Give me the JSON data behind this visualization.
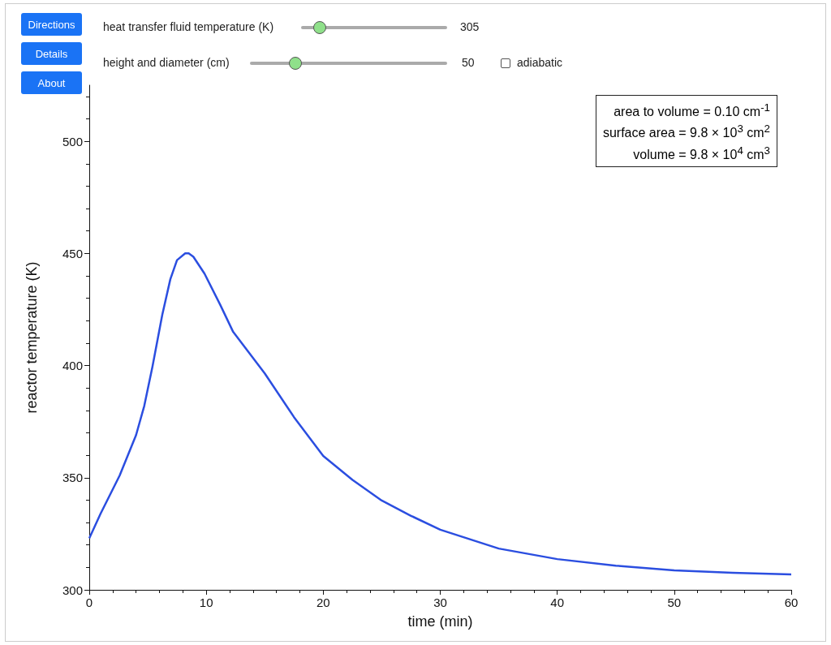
{
  "chart_data": {
    "type": "line",
    "xlabel": "time (min)",
    "ylabel": "reactor temperature (K)",
    "x": [
      0,
      0.97,
      2.6,
      4.0,
      4.7,
      5.4,
      6.24,
      6.93,
      7.5,
      8.2,
      8.5,
      8.9,
      9.85,
      11.2,
      12.3,
      15,
      17.5,
      20,
      22.5,
      25,
      27.5,
      30,
      35,
      40,
      45,
      50,
      55,
      60
    ],
    "series": [
      {
        "color": "#2b4ee0",
        "values": [
          323,
          334,
          351,
          369,
          382,
          399.5,
          422.6,
          438.5,
          447,
          450,
          450,
          448.5,
          441,
          427,
          415,
          396.5,
          377,
          359.7,
          349,
          339.8,
          333,
          326.8,
          318.4,
          313.7,
          310.8,
          308.7,
          307.6,
          306.9
        ]
      }
    ],
    "xlim": [
      0,
      60
    ],
    "xticks": [
      0,
      10,
      20,
      30,
      40,
      50,
      60
    ],
    "ylim": [
      300,
      525
    ],
    "yticks": [
      300,
      350,
      400,
      450,
      500
    ],
    "grid": false,
    "marker": "none",
    "line_style": "solid",
    "annotations": [
      "Directions",
      "Details",
      "About",
      "heat transfer fluid temperature (K)",
      "305",
      "height and diameter (cm)",
      "50",
      "adiabatic",
      "area to volume = 0.10 cm$^{-1}$",
      "surface area = 9.8 × 10$^{3}$ cm$^{2}$",
      "volume = 9.8 × 10$^{4}$ cm$^{3}$"
    ]
  }
}
